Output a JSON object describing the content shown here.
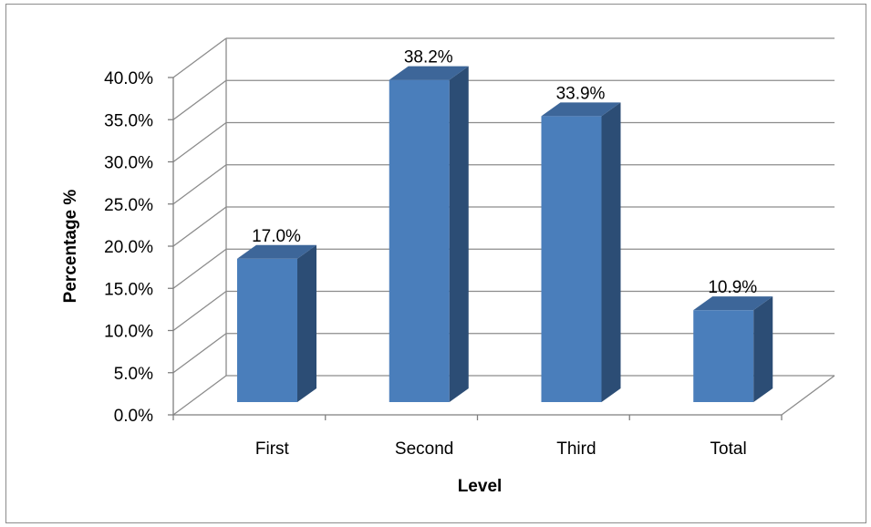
{
  "chart_data": {
    "type": "bar",
    "title": "",
    "xlabel": "Level",
    "ylabel": "Percentage %",
    "categories": [
      "First",
      "Second",
      "Third",
      "Total"
    ],
    "values": [
      17.0,
      38.2,
      33.9,
      10.9
    ],
    "data_labels": [
      "17.0%",
      "38.2%",
      "33.9%",
      "10.9%"
    ],
    "ylim": [
      0,
      40
    ],
    "yticks": [
      0,
      5,
      10,
      15,
      20,
      25,
      30,
      35,
      40
    ],
    "ytick_labels": [
      "0.0%",
      "5.0%",
      "10.0%",
      "15.0%",
      "20.0%",
      "25.0%",
      "30.0%",
      "35.0%",
      "40.0%"
    ],
    "grid": true,
    "legend": "none",
    "style": "3d-column",
    "colors": {
      "bar_front": "#4a7ebb",
      "bar_side": "#2c4d75",
      "bar_top": "#3d6699",
      "grid": "#8c8c8c",
      "axis": "#7f7f7f"
    }
  }
}
